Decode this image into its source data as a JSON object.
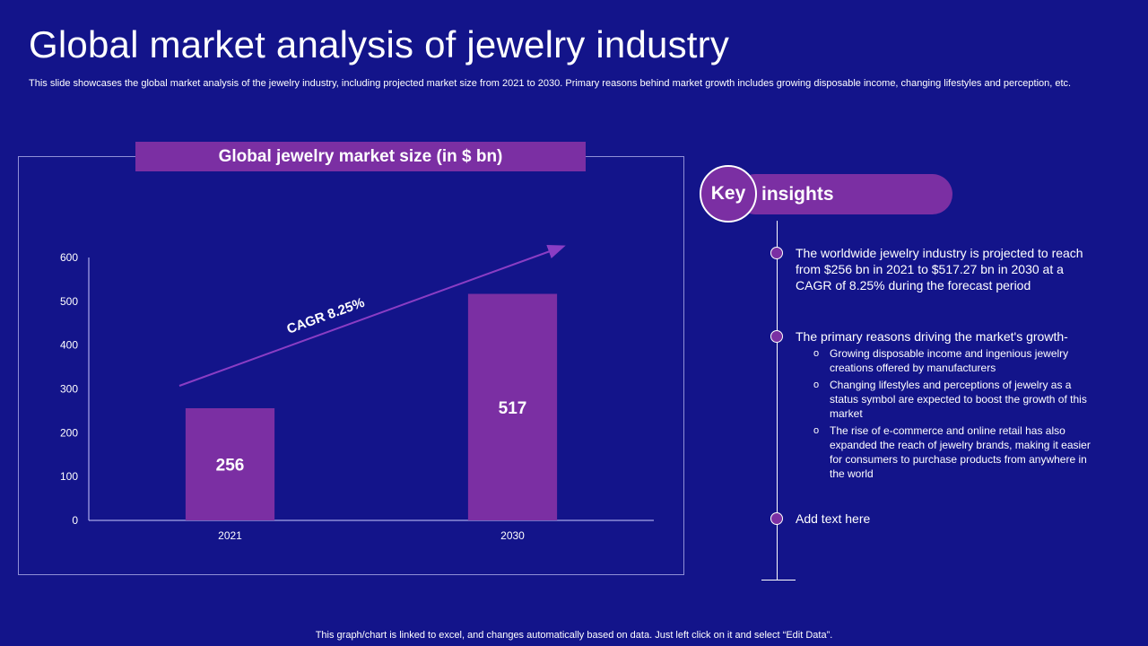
{
  "page": {
    "title": "Global market analysis of jewelry industry",
    "subtitle": "This slide showcases the global market analysis of the jewelry industry, including projected market size from 2021 to 2030. Primary reasons behind market growth includes growing disposable income, changing lifestyles and perception, etc.",
    "footer": "This graph/chart is linked to excel, and changes automatically based on data. Just left click on it and select “Edit Data”."
  },
  "chart_data": {
    "type": "bar",
    "title": "Global jewelry market size (in $ bn)",
    "categories": [
      "2021",
      "2030"
    ],
    "values": [
      256,
      517
    ],
    "data_labels": [
      "256",
      "517"
    ],
    "yticks": [
      "0",
      "100",
      "200",
      "300",
      "400",
      "500",
      "600"
    ],
    "ylim": [
      0,
      600
    ],
    "xlabel": "",
    "ylabel": "",
    "grid": false,
    "annotation": "CAGR 8.25%",
    "bar_color": "#7b2fa3"
  },
  "insights": {
    "heading_key": "Key",
    "heading_rest": "insights",
    "items": [
      "The worldwide jewelry industry is projected to reach from $256 bn in 2021 to $517.27 bn in 2030 at a CAGR of 8.25% during the forecast period",
      "The primary reasons driving the market's growth-",
      "Add text here"
    ],
    "subitems": [
      "Growing disposable income and ingenious jewelry creations offered  by manufacturers",
      "Changing lifestyles and perceptions of jewelry  as a status symbol are expected to boost the growth of this market",
      "The rise of e-commerce and online retail has also expanded the reach of jewelry brands, making it easier for consumers to purchase products from anywhere  in the world"
    ],
    "sub_bullet": "o"
  }
}
